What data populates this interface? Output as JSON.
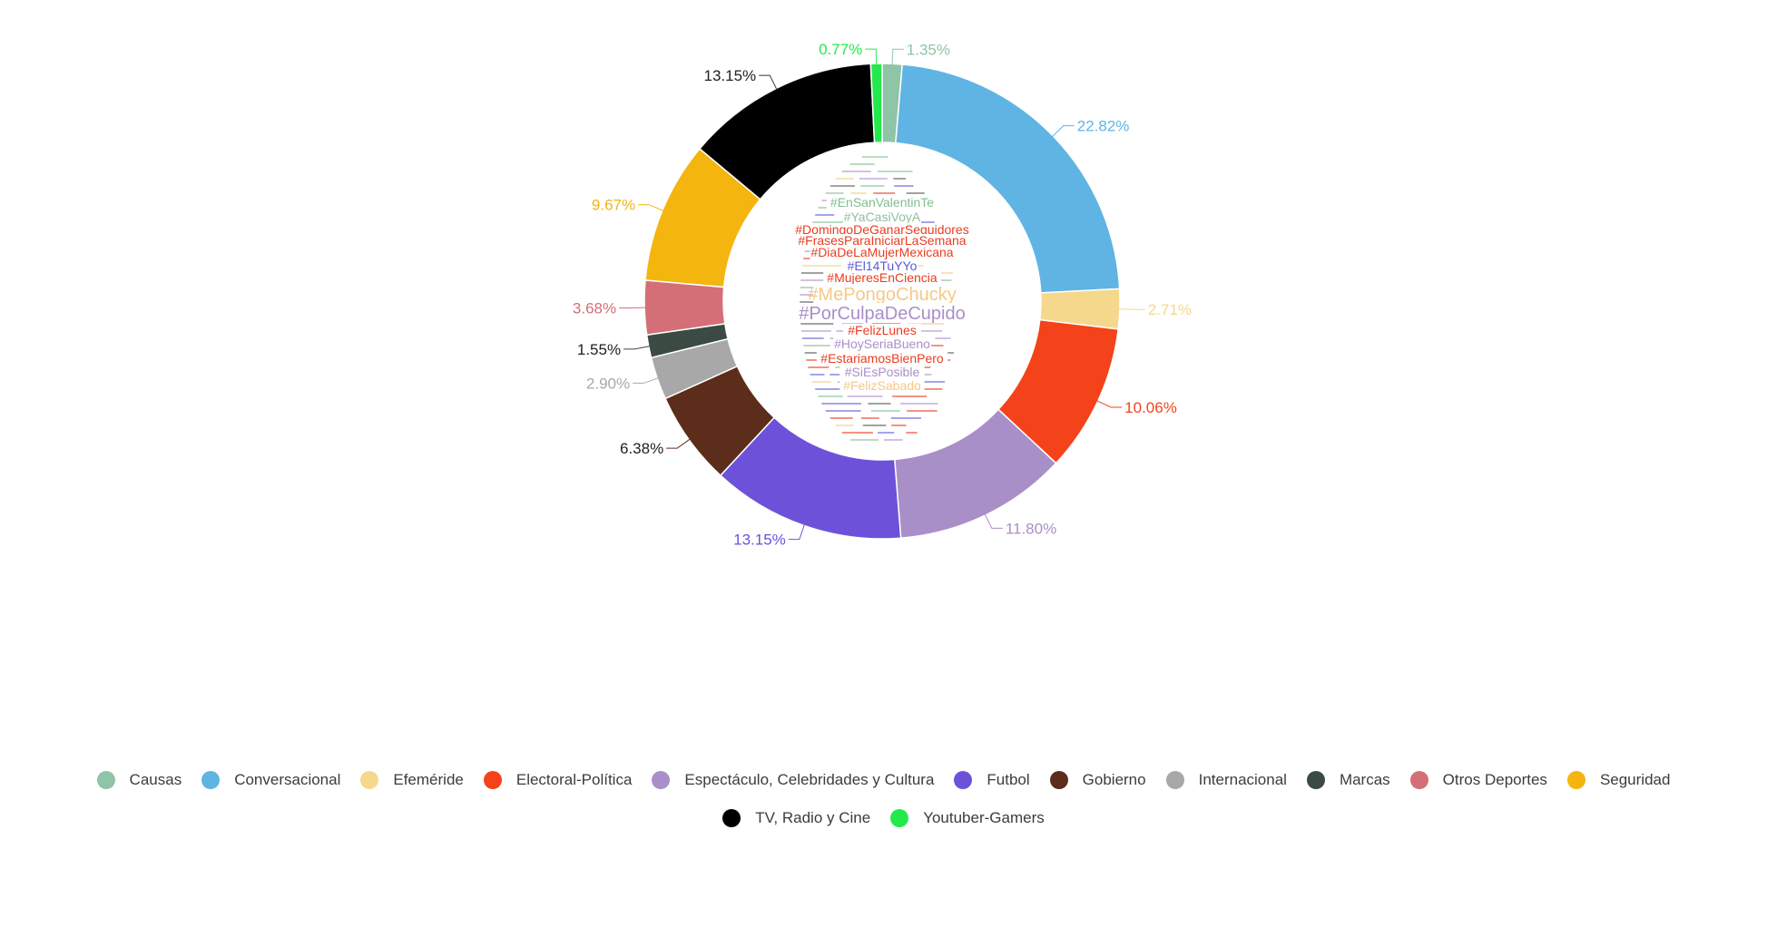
{
  "chart_data": {
    "type": "pie",
    "subtype": "donut",
    "categories": [
      "Causas",
      "Conversacional",
      "Efeméride",
      "Electoral-Política",
      "Espectáculo, Celebridades y Cultura",
      "Futbol",
      "Gobierno",
      "Internacional",
      "Marcas",
      "Otros Deportes",
      "Seguridad",
      "TV, Radio y Cine",
      "Youtuber-Gamers"
    ],
    "values": [
      1.35,
      22.82,
      2.71,
      10.06,
      11.8,
      13.15,
      6.38,
      2.9,
      1.55,
      3.68,
      9.67,
      13.15,
      0.77
    ],
    "labels": [
      "1.35%",
      "22.82%",
      "2.71%",
      "10.06%",
      "11.80%",
      "13.15%",
      "6.38%",
      "2.90%",
      "1.55%",
      "3.68%",
      "9.67%",
      "13.15%",
      "0.77%"
    ],
    "colors": [
      "#8fc4a6",
      "#5fb4e3",
      "#f5d88b",
      "#f4421a",
      "#a98fc8",
      "#6d52d9",
      "#5c2d1a",
      "#a8a8a8",
      "#3c4a44",
      "#d46f77",
      "#f4b50f",
      "#000000",
      "#23ea4c"
    ],
    "legend_position": "bottom",
    "center_word_cloud": [
      {
        "text": "#EnSanValentinTe",
        "color": "#7fbf8f",
        "size": 14
      },
      {
        "text": "#YaCasiVoyA",
        "color": "#8fbf9f",
        "size": 14
      },
      {
        "text": "#DomingoDeGanarSeguidores",
        "color": "#e83d1f",
        "size": 14
      },
      {
        "text": "#FrasesParaIniciarLaSemana",
        "color": "#e83d1f",
        "size": 14
      },
      {
        "text": "#DiaDeLaMujerMexicana",
        "color": "#e83d1f",
        "size": 14
      },
      {
        "text": "#El14TuYYo",
        "color": "#5a5ad8",
        "size": 14
      },
      {
        "text": "#MujeresEnCiencia",
        "color": "#e83d1f",
        "size": 14
      },
      {
        "text": "#MePongoChucky",
        "color": "#f5c987",
        "size": 20
      },
      {
        "text": "#PorCulpaDeCupido",
        "color": "#a98fc8",
        "size": 20
      },
      {
        "text": "#FelizLunes",
        "color": "#e83d1f",
        "size": 14
      },
      {
        "text": "#HoySeriaBueno",
        "color": "#a98fc8",
        "size": 14
      },
      {
        "text": "#EstariamosBienPero",
        "color": "#e83d1f",
        "size": 14
      },
      {
        "text": "#SiEsPosible",
        "color": "#a98fc8",
        "size": 14
      },
      {
        "text": "#FelizSabado",
        "color": "#f5c987",
        "size": 14
      }
    ]
  }
}
